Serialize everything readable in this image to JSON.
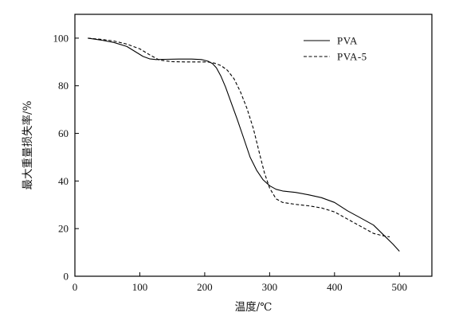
{
  "chart_data": {
    "type": "line",
    "title": "",
    "xlabel": "温度/℃",
    "ylabel": "最大重量损失率/%",
    "xlim": [
      0,
      550
    ],
    "ylim": [
      0,
      110
    ],
    "xticks": [
      0,
      100,
      200,
      300,
      400,
      500
    ],
    "yticks": [
      0,
      20,
      40,
      60,
      80,
      100
    ],
    "grid": false,
    "legend_position": "top-right",
    "series": [
      {
        "name": "PVA",
        "line_style": "solid",
        "color": "#000000",
        "x": [
          20,
          40,
          60,
          80,
          95,
          105,
          115,
          125,
          140,
          160,
          180,
          195,
          205,
          212,
          218,
          225,
          232,
          240,
          250,
          260,
          270,
          280,
          290,
          300,
          310,
          320,
          340,
          360,
          380,
          400,
          420,
          440,
          460,
          475,
          490,
          500
        ],
        "y": [
          100,
          99.2,
          98.2,
          96.5,
          94,
          92.3,
          91.3,
          91,
          91.1,
          91.2,
          91.2,
          91,
          90.3,
          89.3,
          87.5,
          84,
          79.5,
          73.5,
          66,
          58,
          50,
          44.5,
          40.5,
          38,
          36.5,
          35.8,
          35.2,
          34.2,
          33,
          31,
          27.5,
          24.5,
          21.5,
          17.5,
          13.5,
          10.5
        ]
      },
      {
        "name": "PVA-5",
        "line_style": "dashed",
        "color": "#000000",
        "x": [
          20,
          40,
          60,
          80,
          100,
          115,
          130,
          150,
          170,
          190,
          205,
          215,
          225,
          235,
          245,
          255,
          265,
          275,
          285,
          292,
          300,
          310,
          320,
          340,
          360,
          380,
          400,
          420,
          440,
          460,
          475,
          485
        ],
        "y": [
          100,
          99.5,
          98.8,
          97.5,
          95.5,
          93,
          90.8,
          90.1,
          90,
          90,
          90,
          89.5,
          88.5,
          86.5,
          83,
          77.5,
          70.5,
          62,
          51,
          43.5,
          37,
          32.5,
          31,
          30.2,
          29.6,
          28.7,
          27,
          24,
          21,
          18,
          17,
          16.5
        ]
      }
    ]
  }
}
